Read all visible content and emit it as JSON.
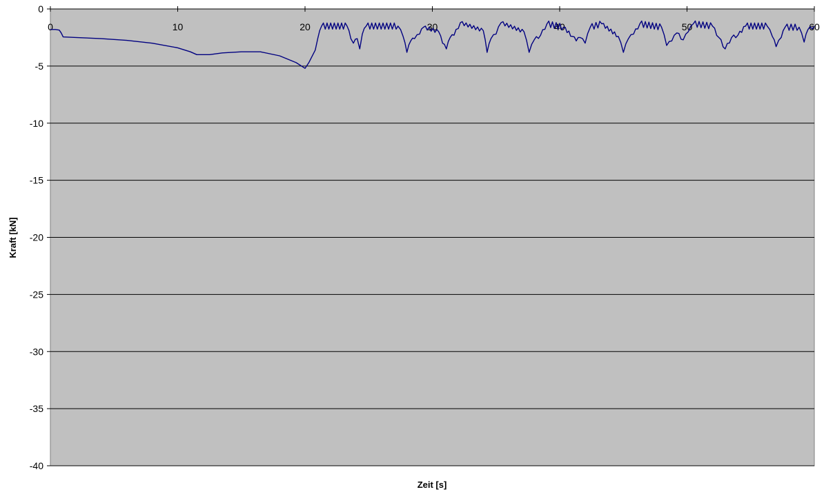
{
  "chart_data": {
    "type": "line",
    "title": "",
    "xlabel": "Zeit [s]",
    "ylabel": "Kraft [kN]",
    "xlim": [
      0,
      60
    ],
    "ylim": [
      -40,
      0
    ],
    "x_ticks": [
      0,
      10,
      20,
      30,
      40,
      50,
      60
    ],
    "y_ticks": [
      0,
      -5,
      -10,
      -15,
      -20,
      -25,
      -30,
      -35,
      -40
    ],
    "x_tick_labels_position": "top, at y = 0",
    "grid": "horizontal major gridlines",
    "legend": "none",
    "colors": {
      "plot_background": "#c0c0c0",
      "line": "#000080",
      "gridline": "#000000",
      "page_background": "#ffffff"
    },
    "series": [
      {
        "points": [
          [
            0,
            -1.8
          ],
          [
            0.4,
            -1.8
          ],
          [
            0.7,
            -1.85
          ],
          [
            0.85,
            -2.1
          ],
          [
            1.0,
            -2.45
          ],
          [
            2,
            -2.5
          ],
          [
            4,
            -2.6
          ],
          [
            6,
            -2.75
          ],
          [
            8,
            -3.0
          ],
          [
            10,
            -3.4
          ],
          [
            11,
            -3.75
          ],
          [
            11.5,
            -4.0
          ],
          [
            12.5,
            -4.0
          ],
          [
            13.5,
            -3.85
          ],
          [
            15,
            -3.75
          ],
          [
            16.5,
            -3.75
          ],
          [
            18,
            -4.1
          ],
          [
            19.3,
            -4.7
          ],
          [
            20.0,
            -5.2
          ],
          [
            20.3,
            -4.7
          ],
          [
            20.8,
            -3.6
          ],
          [
            21.0,
            -2.6
          ],
          [
            21.3,
            -1.5
          ],
          [
            23.3,
            -1.5
          ],
          [
            23.6,
            -2.6
          ],
          [
            23.8,
            -3.0
          ],
          [
            24.1,
            -2.6
          ],
          [
            24.3,
            -3.5
          ],
          [
            24.5,
            -2.2
          ],
          [
            24.8,
            -1.5
          ],
          [
            27.3,
            -1.5
          ],
          [
            27.7,
            -2.4
          ],
          [
            28.0,
            -3.8
          ],
          [
            28.3,
            -2.8
          ],
          [
            28.6,
            -2.6
          ],
          [
            29.0,
            -2.2
          ],
          [
            29.3,
            -1.6
          ],
          [
            30.5,
            -2.0
          ],
          [
            30.8,
            -3.0
          ],
          [
            31.1,
            -3.5
          ],
          [
            31.4,
            -2.5
          ],
          [
            31.7,
            -2.3
          ],
          [
            32.2,
            -1.2
          ],
          [
            34.0,
            -1.9
          ],
          [
            34.3,
            -3.8
          ],
          [
            34.6,
            -2.6
          ],
          [
            35.0,
            -2.2
          ],
          [
            35.4,
            -1.2
          ],
          [
            37.2,
            -2.0
          ],
          [
            37.6,
            -3.8
          ],
          [
            38.0,
            -2.7
          ],
          [
            38.5,
            -2.3
          ],
          [
            39.0,
            -1.3
          ],
          [
            40.3,
            -1.6
          ],
          [
            41.0,
            -2.4
          ],
          [
            41.3,
            -2.8
          ],
          [
            41.6,
            -2.5
          ],
          [
            42.0,
            -3.0
          ],
          [
            42.4,
            -1.6
          ],
          [
            43.3,
            -1.3
          ],
          [
            44.6,
            -2.4
          ],
          [
            45.0,
            -3.8
          ],
          [
            45.4,
            -2.6
          ],
          [
            45.8,
            -2.2
          ],
          [
            46.3,
            -1.3
          ],
          [
            48.0,
            -1.6
          ],
          [
            48.4,
            -3.2
          ],
          [
            48.8,
            -2.8
          ],
          [
            49.2,
            -2.1
          ],
          [
            49.7,
            -2.7
          ],
          [
            50.1,
            -2.0
          ],
          [
            50.5,
            -1.3
          ],
          [
            52.0,
            -1.5
          ],
          [
            52.5,
            -2.5
          ],
          [
            53.0,
            -3.5
          ],
          [
            53.5,
            -2.5
          ],
          [
            54.0,
            -2.3
          ],
          [
            54.6,
            -1.5
          ],
          [
            56.3,
            -1.5
          ],
          [
            56.7,
            -2.4
          ],
          [
            57.0,
            -3.3
          ],
          [
            57.4,
            -2.5
          ],
          [
            57.7,
            -1.6
          ],
          [
            58.8,
            -1.6
          ],
          [
            59.2,
            -2.9
          ],
          [
            59.5,
            -1.8
          ],
          [
            60,
            -1.5
          ]
        ]
      }
    ]
  }
}
